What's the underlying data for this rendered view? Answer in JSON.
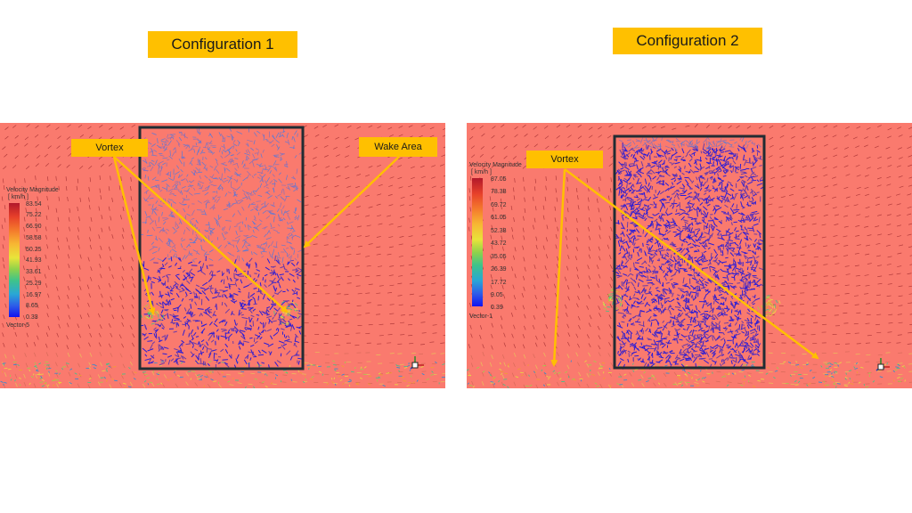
{
  "titles": {
    "config1": "Configuration 1",
    "config2": "Configuration 2"
  },
  "panel1": {
    "callouts": {
      "vortex": "Vortex",
      "wake": "Wake Area"
    },
    "legend": {
      "title": "Velocity Magnitude",
      "unit": "[ km/h ]",
      "ticks": [
        "83.54",
        "75.22",
        "66.90",
        "58.58",
        "50.25",
        "41.93",
        "33.61",
        "25.29",
        "16.97",
        "8.65",
        "0.33"
      ],
      "footer": "Vector-5"
    }
  },
  "panel2": {
    "callouts": {
      "vortex": "Vortex"
    },
    "legend": {
      "title": "Velocity Magnitude",
      "unit": "[ km/h ]",
      "ticks": [
        "87.05",
        "78.38",
        "69.72",
        "61.05",
        "52.38",
        "43.72",
        "35.05",
        "26.39",
        "17.72",
        "9.05",
        "0.39"
      ],
      "footer": "Vector-1"
    }
  },
  "colors": {
    "accent": "#ffc000",
    "field": "#fa7a6e",
    "building_outline": "#222c33"
  }
}
